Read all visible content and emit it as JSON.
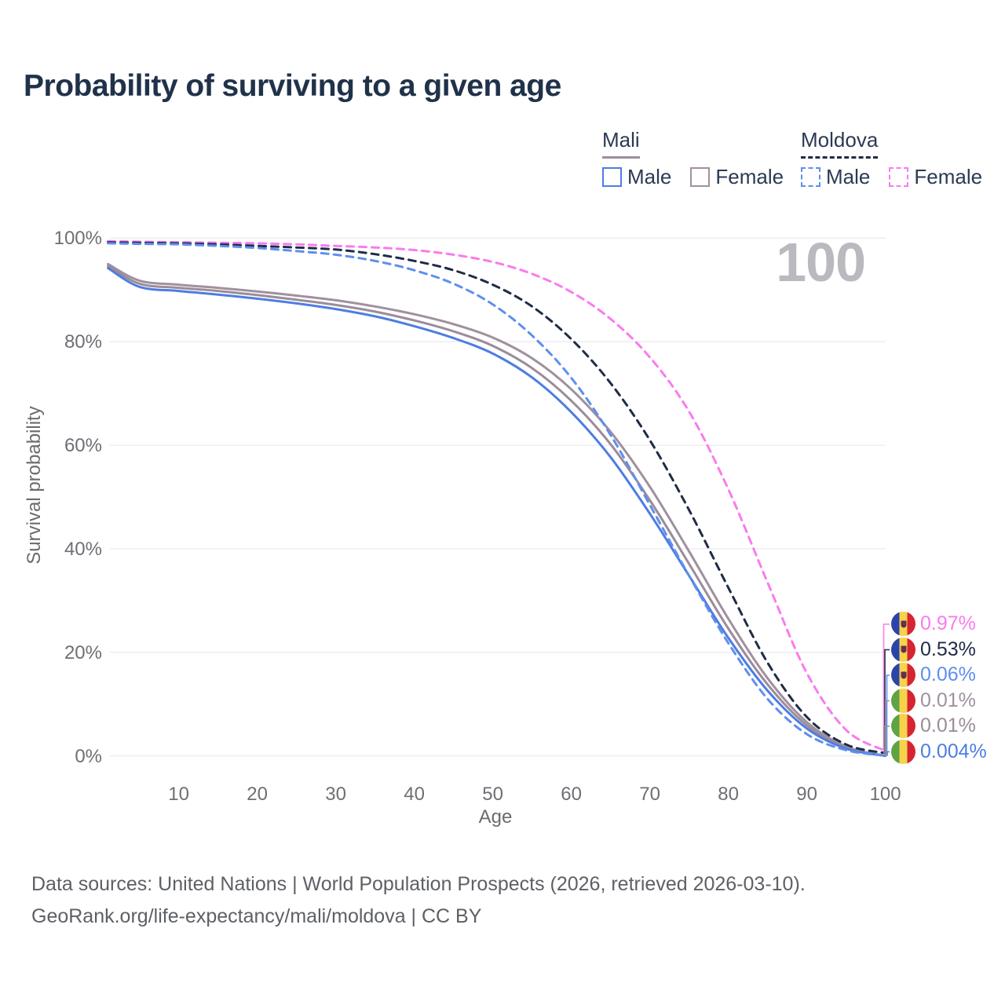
{
  "page": {
    "title": "Probability of surviving to a given age"
  },
  "legend": {
    "groups": [
      {
        "country": "Mali",
        "line_style": "solid",
        "color": "#9d8e9c",
        "items": [
          {
            "label": "Male",
            "style": "solid",
            "color": "#4d7de2"
          },
          {
            "label": "Female",
            "style": "solid",
            "color": "#a0909e"
          }
        ]
      },
      {
        "country": "Moldova",
        "line_style": "dashed",
        "color": "#1f2c47",
        "items": [
          {
            "label": "Male",
            "style": "dashed",
            "color": "#5f8eee"
          },
          {
            "label": "Female",
            "style": "dashed",
            "color": "#f97bee"
          }
        ]
      }
    ]
  },
  "chart_data": {
    "type": "line",
    "title": "Probability of surviving to a given age",
    "xlabel": "Age",
    "ylabel": "Survival probability",
    "xlim": [
      0,
      100
    ],
    "ylim": [
      0,
      100
    ],
    "grid": "horizontal",
    "legend_position": "top-right",
    "age_indicator": "100",
    "x_ticks": [
      "10",
      "20",
      "30",
      "40",
      "50",
      "60",
      "70",
      "80",
      "90",
      "100"
    ],
    "x_tick_values": [
      10,
      20,
      30,
      40,
      50,
      60,
      70,
      80,
      90,
      100
    ],
    "y_ticks": [
      "100%",
      "80%",
      "60%",
      "40%",
      "20%",
      "0%"
    ],
    "y_tick_values": [
      100,
      80,
      60,
      40,
      20,
      0
    ],
    "x": [
      1,
      5,
      10,
      15,
      20,
      25,
      30,
      35,
      40,
      45,
      50,
      55,
      60,
      65,
      70,
      75,
      80,
      85,
      90,
      95,
      100
    ],
    "series": [
      {
        "name": "Moldova Female",
        "country": "Moldova",
        "sex": "female",
        "dashed": true,
        "color": "#f97bee",
        "flag": "moldova",
        "end_label": "0.97%",
        "values": [
          99.4,
          99.3,
          99.2,
          99.1,
          99.0,
          98.8,
          98.5,
          98.2,
          97.7,
          96.8,
          95.4,
          93.1,
          89.6,
          84.4,
          77.0,
          66.5,
          51.5,
          33.5,
          16.0,
          5.0,
          0.97
        ]
      },
      {
        "name": "Moldova",
        "country": "Moldova",
        "sex": "both",
        "dashed": true,
        "color": "#1f2c47",
        "flag": "moldova",
        "end_label": "0.53%",
        "values": [
          99.2,
          99.1,
          99.0,
          98.8,
          98.5,
          98.2,
          97.8,
          96.9,
          95.6,
          93.8,
          91.0,
          86.8,
          80.5,
          72.0,
          61.0,
          47.5,
          32.5,
          18.0,
          7.5,
          2.2,
          0.53
        ]
      },
      {
        "name": "Moldova Male",
        "country": "Moldova",
        "sex": "male",
        "dashed": true,
        "color": "#5f8eee",
        "flag": "moldova",
        "end_label": "0.06%",
        "values": [
          99.0,
          98.9,
          98.8,
          98.5,
          98.1,
          97.5,
          96.8,
          95.6,
          93.8,
          91.2,
          87.2,
          81.2,
          73.0,
          62.0,
          48.5,
          34.8,
          21.8,
          11.0,
          4.2,
          1.1,
          0.06
        ]
      },
      {
        "name": "Mali Female",
        "country": "Mali",
        "sex": "female",
        "dashed": false,
        "color": "#a0909e",
        "flag": "mali",
        "end_label": "0.01%",
        "values": [
          95.0,
          91.8,
          91.0,
          90.4,
          89.7,
          88.9,
          88.0,
          86.8,
          85.3,
          83.4,
          80.8,
          76.8,
          70.8,
          62.6,
          52.0,
          39.5,
          26.5,
          15.0,
          6.5,
          1.8,
          0.01
        ]
      },
      {
        "name": "Mali",
        "country": "Mali",
        "sex": "both",
        "dashed": false,
        "color": "#9b8c99",
        "flag": "mali",
        "end_label": "0.01%",
        "values": [
          94.6,
          91.2,
          90.4,
          89.8,
          89.0,
          88.1,
          87.1,
          85.8,
          84.1,
          82.0,
          79.2,
          74.9,
          68.6,
          60.2,
          49.4,
          37.1,
          24.6,
          13.8,
          5.9,
          1.6,
          0.01
        ]
      },
      {
        "name": "Mali Male",
        "country": "Mali",
        "sex": "male",
        "dashed": false,
        "color": "#4d7de2",
        "flag": "mali",
        "end_label": "0.004%",
        "values": [
          94.2,
          90.6,
          89.8,
          89.1,
          88.3,
          87.4,
          86.3,
          84.9,
          83.0,
          80.7,
          77.7,
          73.1,
          66.4,
          57.7,
          46.8,
          34.8,
          22.8,
          12.6,
          5.3,
          1.4,
          0.004
        ]
      }
    ]
  },
  "footer": {
    "line1": "Data sources: United Nations | World Population Prospects (2026, retrieved 2026-03-10).",
    "line2": "GeoRank.org/life-expectancy/mali/moldova | CC BY"
  }
}
